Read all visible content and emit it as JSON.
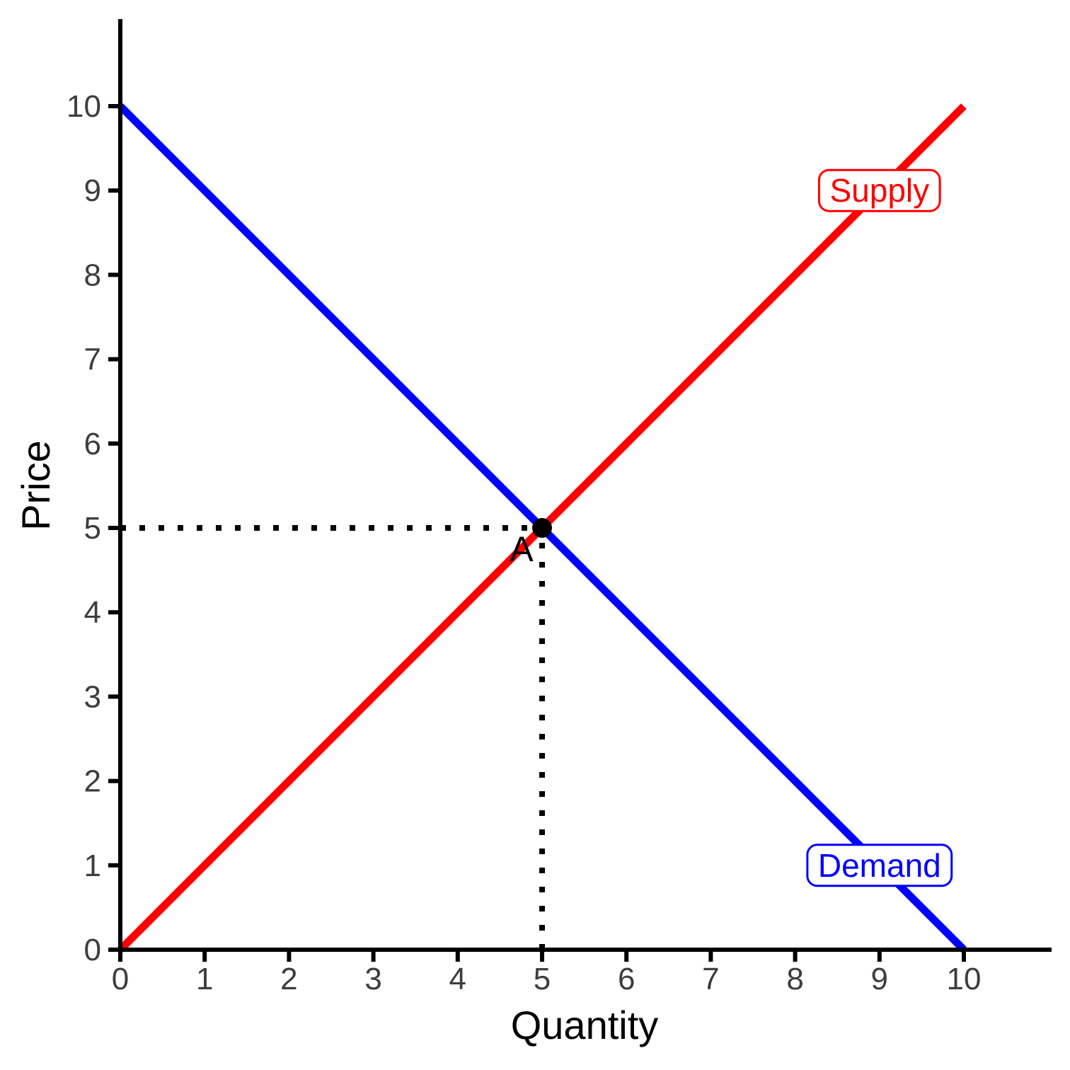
{
  "chart_data": {
    "type": "line",
    "title": "",
    "xlabel": "Quantity",
    "ylabel": "Price",
    "xlim": [
      0,
      10
    ],
    "ylim": [
      0,
      10
    ],
    "xticks": [
      0,
      1,
      2,
      3,
      4,
      5,
      6,
      7,
      8,
      9,
      10
    ],
    "yticks": [
      0,
      1,
      2,
      3,
      4,
      5,
      6,
      7,
      8,
      9,
      10
    ],
    "grid": false,
    "series": [
      {
        "name": "Supply",
        "color": "#ff0000",
        "points": [
          [
            0,
            0
          ],
          [
            10,
            10
          ]
        ],
        "label_at": {
          "x": 9,
          "y": 9
        }
      },
      {
        "name": "Demand",
        "color": "#0000ff",
        "points": [
          [
            0,
            10
          ],
          [
            10,
            0
          ]
        ],
        "label_at": {
          "x": 9,
          "y": 1
        }
      }
    ],
    "equilibrium": {
      "label": "A",
      "x": 5,
      "y": 5,
      "guides": true
    },
    "colors": {
      "axis": "#000000",
      "tick_label": "#3d3d3d",
      "guide": "#000000",
      "point": "#000000",
      "background": "#ffffff"
    }
  }
}
